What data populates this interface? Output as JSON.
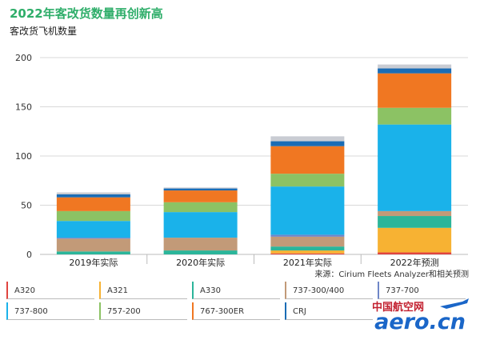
{
  "title": "2022年客改货数量再创新高",
  "subtitle": "客改货飞机数量",
  "source": "来源：Cirium Fleets Analyzer和相关预测",
  "watermark": {
    "cn": "中国航空网",
    "en": "aero.cn"
  },
  "chart_data": {
    "type": "bar",
    "stacked": true,
    "title": "2022年客改货数量再创新高",
    "ylabel": "客改货飞机数量",
    "ylim": [
      0,
      200
    ],
    "yticks": [
      "0",
      "50",
      "100",
      "150",
      "200"
    ],
    "grid": true,
    "legend_position": "bottom",
    "categories": [
      "2019年实际",
      "2020年实际",
      "2021年实际",
      "2022年预测"
    ],
    "series": [
      {
        "name": "A320",
        "color": "#e0443f",
        "values": [
          0,
          0,
          1,
          2
        ]
      },
      {
        "name": "A321",
        "color": "#f7b233",
        "values": [
          0,
          0,
          3,
          25
        ]
      },
      {
        "name": "A330",
        "color": "#2bb59a",
        "values": [
          3,
          4,
          4,
          12
        ]
      },
      {
        "name": "737-300/400",
        "color": "#c29a78",
        "values": [
          13,
          13,
          10,
          5
        ]
      },
      {
        "name": "737-700",
        "color": "#6f86c7",
        "values": [
          1,
          0,
          2,
          0
        ]
      },
      {
        "name": "737-800",
        "color": "#1ab2ea",
        "values": [
          17,
          26,
          49,
          88
        ]
      },
      {
        "name": "757-200",
        "color": "#8cc264",
        "values": [
          10,
          10,
          13,
          17
        ]
      },
      {
        "name": "767-300ER",
        "color": "#f07722",
        "values": [
          14,
          12,
          28,
          35
        ]
      },
      {
        "name": "CRJ",
        "color": "#1a6cb5",
        "values": [
          3,
          2,
          5,
          5
        ]
      },
      {
        "name": "",
        "color": "#c9ccd3",
        "values": [
          2,
          1,
          5,
          4
        ]
      }
    ]
  }
}
